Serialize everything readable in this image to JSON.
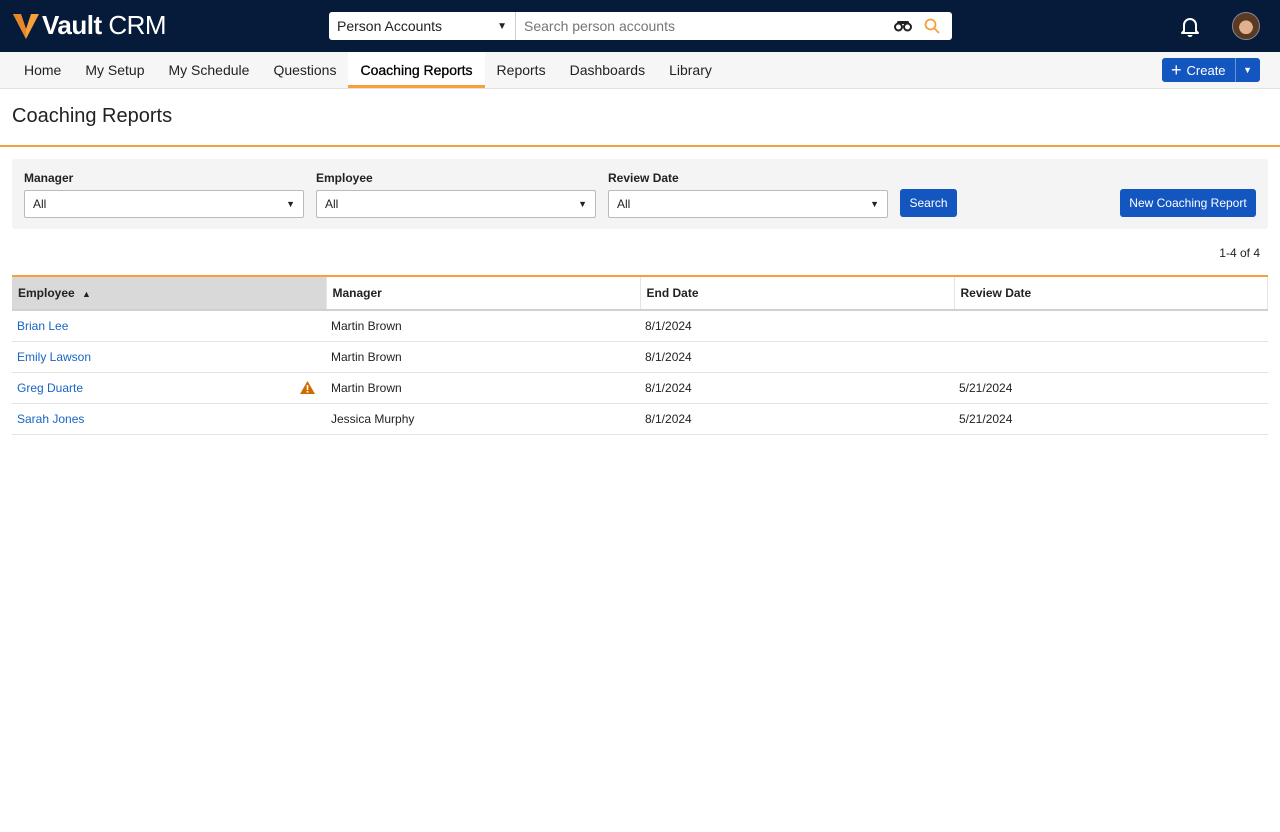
{
  "app": {
    "brand_bold": "Vault",
    "brand_rest": " CRM"
  },
  "global_search": {
    "object": "Person Accounts",
    "placeholder": "Search person accounts"
  },
  "nav": {
    "tabs": [
      {
        "label": "Home"
      },
      {
        "label": "My Setup"
      },
      {
        "label": "My Schedule"
      },
      {
        "label": "Questions"
      },
      {
        "label": "Coaching Reports",
        "active": true
      },
      {
        "label": "Reports"
      },
      {
        "label": "Dashboards"
      },
      {
        "label": "Library"
      }
    ],
    "create_label": "Create"
  },
  "page": {
    "title": "Coaching Reports"
  },
  "filters": {
    "manager": {
      "label": "Manager",
      "value": "All"
    },
    "employee": {
      "label": "Employee",
      "value": "All"
    },
    "review_date": {
      "label": "Review Date",
      "value": "All"
    },
    "search_label": "Search",
    "new_label": "New Coaching Report"
  },
  "pagination": {
    "text": "1-4 of 4"
  },
  "table": {
    "columns": [
      "Employee",
      "Manager",
      "End Date",
      "Review Date"
    ],
    "sorted_column": "Employee",
    "sort_direction": "ascending",
    "rows": [
      {
        "employee": "Brian Lee",
        "manager": "Martin Brown",
        "end_date": "8/1/2024",
        "review_date": "",
        "warning": false
      },
      {
        "employee": "Emily Lawson",
        "manager": "Martin Brown",
        "end_date": "8/1/2024",
        "review_date": "",
        "warning": false
      },
      {
        "employee": "Greg Duarte",
        "manager": "Martin Brown",
        "end_date": "8/1/2024",
        "review_date": "5/21/2024",
        "warning": true
      },
      {
        "employee": "Sarah Jones",
        "manager": "Jessica Murphy",
        "end_date": "8/1/2024",
        "review_date": "5/21/2024",
        "warning": false
      }
    ]
  },
  "colors": {
    "header_bg": "#061a3a",
    "accent": "#f5a03a",
    "primary": "#1456c0",
    "link": "#1765c4",
    "warning": "#d06a00"
  }
}
